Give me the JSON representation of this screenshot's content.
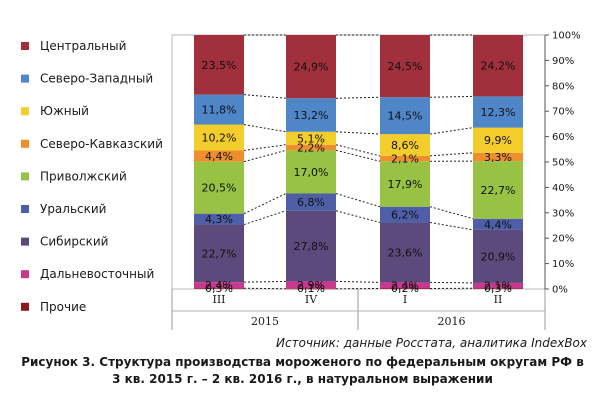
{
  "chart_data": {
    "type": "bar",
    "stacked": "percent",
    "categories": [
      "III",
      "IV",
      "I",
      "II"
    ],
    "year_groups": [
      {
        "label": "2015",
        "categories": [
          "III",
          "IV"
        ]
      },
      {
        "label": "2016",
        "categories": [
          "I",
          "II"
        ]
      }
    ],
    "series": [
      {
        "name": "Прочие",
        "color": "#8b1a1f",
        "values": [
          0.3,
          0.1,
          0.2,
          0.3
        ],
        "labels": [
          "0,3%",
          "0,1%",
          "0,2%",
          "0,3%"
        ]
      },
      {
        "name": "Дальневосточный",
        "color": "#c8398e",
        "values": [
          2.4,
          2.9,
          2.4,
          2.1
        ],
        "labels": [
          "2,4%",
          "2,9%",
          "2,4%",
          "2,1%"
        ]
      },
      {
        "name": "Сибирский",
        "color": "#5d4a7c",
        "values": [
          22.7,
          27.8,
          23.6,
          20.9
        ],
        "labels": [
          "22,7%",
          "27,8%",
          "23,6%",
          "20,9%"
        ]
      },
      {
        "name": "Уральский",
        "color": "#4e5fa8",
        "values": [
          4.3,
          6.8,
          6.2,
          4.4
        ],
        "labels": [
          "4,3%",
          "6,8%",
          "6,2%",
          "4,4%"
        ]
      },
      {
        "name": "Приволжский",
        "color": "#97c244",
        "values": [
          20.5,
          17.0,
          17.9,
          22.7
        ],
        "labels": [
          "20,5%",
          "17,0%",
          "17,9%",
          "22,7%"
        ]
      },
      {
        "name": "Северо-Кавказский",
        "color": "#ee8e2c",
        "values": [
          4.4,
          2.2,
          2.1,
          3.3
        ],
        "labels": [
          "4,4%",
          "2,2%",
          "2,1%",
          "3,3%"
        ]
      },
      {
        "name": "Южный",
        "color": "#f3cd2b",
        "values": [
          10.2,
          5.1,
          8.6,
          9.9
        ],
        "labels": [
          "10,2%",
          "5,1%",
          "8,6%",
          "9,9%"
        ]
      },
      {
        "name": "Северо-Западный",
        "color": "#4e86c8",
        "values": [
          11.8,
          13.2,
          14.5,
          12.3
        ],
        "labels": [
          "11,8%",
          "13,2%",
          "14,5%",
          "12,3%"
        ]
      },
      {
        "name": "Центральный",
        "color": "#a1303c",
        "values": [
          23.5,
          24.9,
          24.5,
          24.2
        ],
        "labels": [
          "23,5%",
          "24,9%",
          "24,5%",
          "24,2%"
        ]
      }
    ],
    "legend_order": [
      "Центральный",
      "Северо-Западный",
      "Южный",
      "Северо-Кавказский",
      "Приволжский",
      "Уральский",
      "Сибирский",
      "Дальневосточный",
      "Прочие"
    ],
    "ylim": [
      0,
      100
    ],
    "yticks": [
      "0%",
      "10%",
      "20%",
      "30%",
      "40%",
      "50%",
      "60%",
      "70%",
      "80%",
      "90%",
      "100%"
    ],
    "y_axis_side": "right",
    "legend_position": "left",
    "grid": false,
    "connector_lines": "dashed"
  },
  "source_text": "Источник: данные Росстата, аналитика IndexBox",
  "caption_lines": [
    "Рисунок 3. Структура производства мороженого по федеральным округам РФ в",
    "3 кв. 2015 г. – 2 кв. 2016 г., в натуральном выражении"
  ]
}
